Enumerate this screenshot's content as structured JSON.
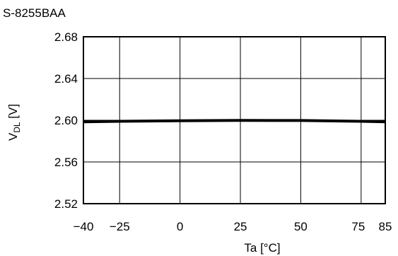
{
  "chart_data": {
    "type": "line",
    "title": "S-8255BAA",
    "xlabel": "Ta [°C]",
    "ylabel_main": "V",
    "ylabel_sub": "DL",
    "ylabel_unit": " [V]",
    "xlim": [
      -40,
      85
    ],
    "ylim": [
      2.52,
      2.68
    ],
    "x_ticks": [
      -40,
      -25,
      0,
      25,
      50,
      75,
      85
    ],
    "x_tick_labels": [
      "−40",
      "−25",
      "0",
      "25",
      "50",
      "75",
      "85"
    ],
    "y_ticks": [
      2.52,
      2.56,
      2.6,
      2.64,
      2.68
    ],
    "y_tick_labels": [
      "2.52",
      "2.56",
      "2.60",
      "2.64",
      "2.68"
    ],
    "grid": true,
    "series": [
      {
        "x": [
          -40,
          -25,
          0,
          25,
          50,
          75,
          85
        ],
        "y": [
          2.5985,
          2.599,
          2.5995,
          2.5998,
          2.5997,
          2.599,
          2.5985
        ]
      }
    ],
    "colors": {
      "line": "#000000",
      "grid": "#000000"
    }
  }
}
